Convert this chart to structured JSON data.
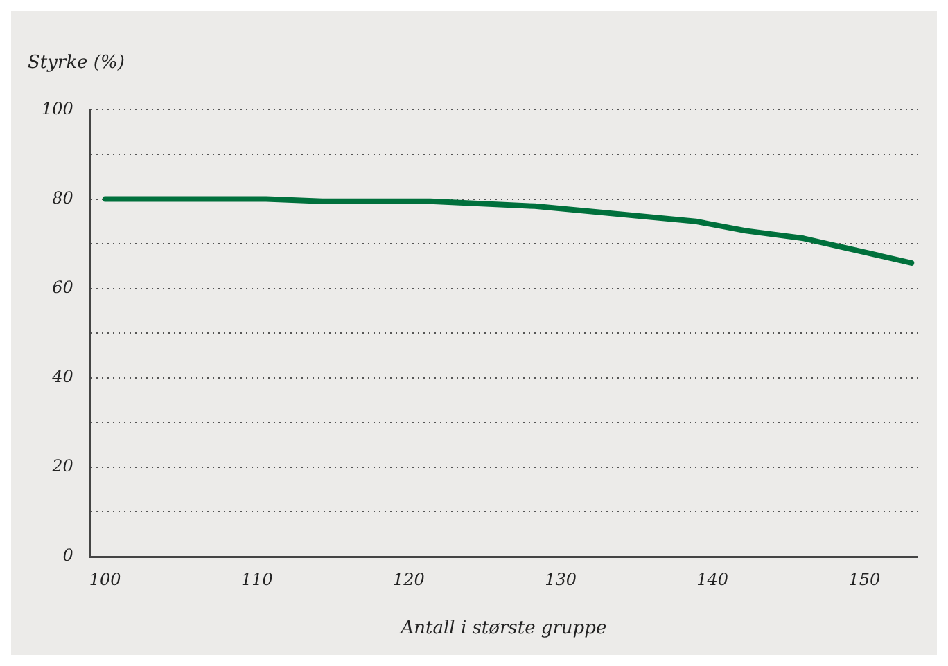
{
  "chart_data": {
    "type": "line",
    "ylabel": "Styrke (%)",
    "xlabel": "Antall i største gruppe",
    "series": [
      {
        "color": "#00703c",
        "x": [
          100,
          110.6,
          114.3,
          121.4,
          128.3,
          138.9,
          142.2,
          146,
          153.1
        ],
        "values": [
          80,
          80,
          79.5,
          79.5,
          78.4,
          75,
          72.9,
          71.2,
          65.7
        ]
      }
    ],
    "xlim": [
      99,
      153.5
    ],
    "xticks": [
      100,
      110,
      120,
      130,
      140,
      150
    ],
    "ylim": [
      0,
      100
    ],
    "yticks": [
      0,
      {
        "value": 10,
        "label": null
      },
      20,
      {
        "value": 30,
        "label": null
      },
      40,
      {
        "value": 50,
        "label": null
      },
      60,
      {
        "value": 70,
        "label": null
      },
      80,
      {
        "value": 90,
        "label": null
      },
      100
    ],
    "grid": "y",
    "marker": "none",
    "line_style": "solid",
    "legend": false
  }
}
